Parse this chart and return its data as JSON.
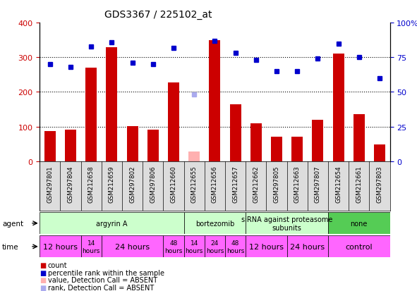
{
  "title": "GDS3367 / 225102_at",
  "samples": [
    "GSM297801",
    "GSM297804",
    "GSM212658",
    "GSM212659",
    "GSM297802",
    "GSM297806",
    "GSM212660",
    "GSM212655",
    "GSM212656",
    "GSM212657",
    "GSM212662",
    "GSM297805",
    "GSM212663",
    "GSM297807",
    "GSM212654",
    "GSM212661",
    "GSM297803"
  ],
  "bar_values": [
    88,
    92,
    270,
    330,
    102,
    92,
    228,
    28,
    350,
    165,
    110,
    70,
    70,
    120,
    310,
    135,
    48
  ],
  "bar_absent": [
    false,
    false,
    false,
    false,
    false,
    false,
    false,
    true,
    false,
    false,
    false,
    false,
    false,
    false,
    false,
    false,
    false
  ],
  "rank_values": [
    70,
    68,
    83,
    86,
    71,
    70,
    82,
    48,
    87,
    78,
    73,
    65,
    65,
    74,
    85,
    75,
    60
  ],
  "rank_absent": [
    false,
    false,
    false,
    false,
    false,
    false,
    false,
    true,
    false,
    false,
    false,
    false,
    false,
    false,
    false,
    false,
    false
  ],
  "bar_color": "#cc0000",
  "bar_absent_color": "#ffb0b0",
  "rank_color": "#0000cc",
  "rank_absent_color": "#aaaaee",
  "ylim_left": [
    0,
    400
  ],
  "ylim_right": [
    0,
    100
  ],
  "yticks_left": [
    0,
    100,
    200,
    300,
    400
  ],
  "yticks_right": [
    0,
    25,
    50,
    75,
    100
  ],
  "agent_groups": [
    {
      "label": "argyrin A",
      "start": 0,
      "end": 7,
      "color": "#ccffcc"
    },
    {
      "label": "bortezomib",
      "start": 7,
      "end": 10,
      "color": "#ccffcc"
    },
    {
      "label": "siRNA against proteasome\nsubunits",
      "start": 10,
      "end": 14,
      "color": "#ccffcc"
    },
    {
      "label": "none",
      "start": 14,
      "end": 17,
      "color": "#55cc55"
    }
  ],
  "time_groups": [
    {
      "label": "12 hours",
      "start": 0,
      "end": 2,
      "color": "#ff66ff",
      "fontsize": 8
    },
    {
      "label": "14\nhours",
      "start": 2,
      "end": 3,
      "color": "#ff66ff",
      "fontsize": 6.5
    },
    {
      "label": "24 hours",
      "start": 3,
      "end": 6,
      "color": "#ff66ff",
      "fontsize": 8
    },
    {
      "label": "48\nhours",
      "start": 6,
      "end": 7,
      "color": "#ff66ff",
      "fontsize": 6.5
    },
    {
      "label": "14\nhours",
      "start": 7,
      "end": 8,
      "color": "#ff66ff",
      "fontsize": 6.5
    },
    {
      "label": "24\nhours",
      "start": 8,
      "end": 9,
      "color": "#ff66ff",
      "fontsize": 6.5
    },
    {
      "label": "48\nhours",
      "start": 9,
      "end": 10,
      "color": "#ff66ff",
      "fontsize": 6.5
    },
    {
      "label": "12 hours",
      "start": 10,
      "end": 12,
      "color": "#ff66ff",
      "fontsize": 8
    },
    {
      "label": "24 hours",
      "start": 12,
      "end": 14,
      "color": "#ff66ff",
      "fontsize": 8
    },
    {
      "label": "control",
      "start": 14,
      "end": 17,
      "color": "#ff66ff",
      "fontsize": 8
    }
  ],
  "legend_items": [
    {
      "label": "count",
      "color": "#cc0000"
    },
    {
      "label": "percentile rank within the sample",
      "color": "#0000cc"
    },
    {
      "label": "value, Detection Call = ABSENT",
      "color": "#ffb0b0"
    },
    {
      "label": "rank, Detection Call = ABSENT",
      "color": "#aaaaee"
    }
  ],
  "background_color": "#ffffff",
  "label_bg_color": "#dddddd"
}
